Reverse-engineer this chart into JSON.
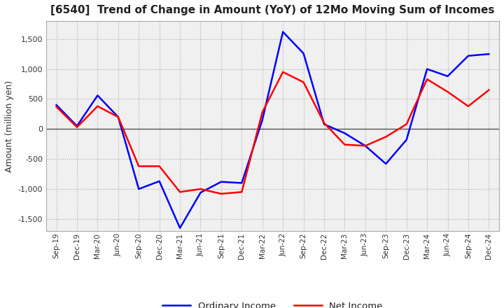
{
  "title": "[6540]  Trend of Change in Amount (YoY) of 12Mo Moving Sum of Incomes",
  "ylabel": "Amount (million yen)",
  "ylim": [
    -1700,
    1800
  ],
  "yticks": [
    -1500,
    -1000,
    -500,
    0,
    500,
    1000,
    1500
  ],
  "x_labels": [
    "Sep-19",
    "Dec-19",
    "Mar-20",
    "Jun-20",
    "Sep-20",
    "Dec-20",
    "Mar-21",
    "Jun-21",
    "Sep-21",
    "Dec-21",
    "Mar-22",
    "Jun-22",
    "Sep-22",
    "Dec-22",
    "Mar-23",
    "Jun-23",
    "Sep-23",
    "Dec-23",
    "Mar-24",
    "Jun-24",
    "Sep-24",
    "Dec-24"
  ],
  "ordinary_income": [
    400,
    50,
    560,
    200,
    -1000,
    -870,
    -1650,
    -1060,
    -880,
    -900,
    150,
    1620,
    1260,
    80,
    -70,
    -280,
    -580,
    -180,
    1000,
    880,
    1220,
    1250
  ],
  "net_income": [
    370,
    30,
    380,
    200,
    -620,
    -620,
    -1050,
    -1000,
    -1080,
    -1050,
    280,
    950,
    780,
    100,
    -260,
    -280,
    -130,
    80,
    830,
    620,
    380,
    650
  ],
  "ordinary_color": "#0000FF",
  "net_color": "#FF0000",
  "grid_color": "#AAAAAA",
  "plot_bg_color": "#F0F0F0",
  "background_color": "#FFFFFF",
  "line_width": 1.8
}
